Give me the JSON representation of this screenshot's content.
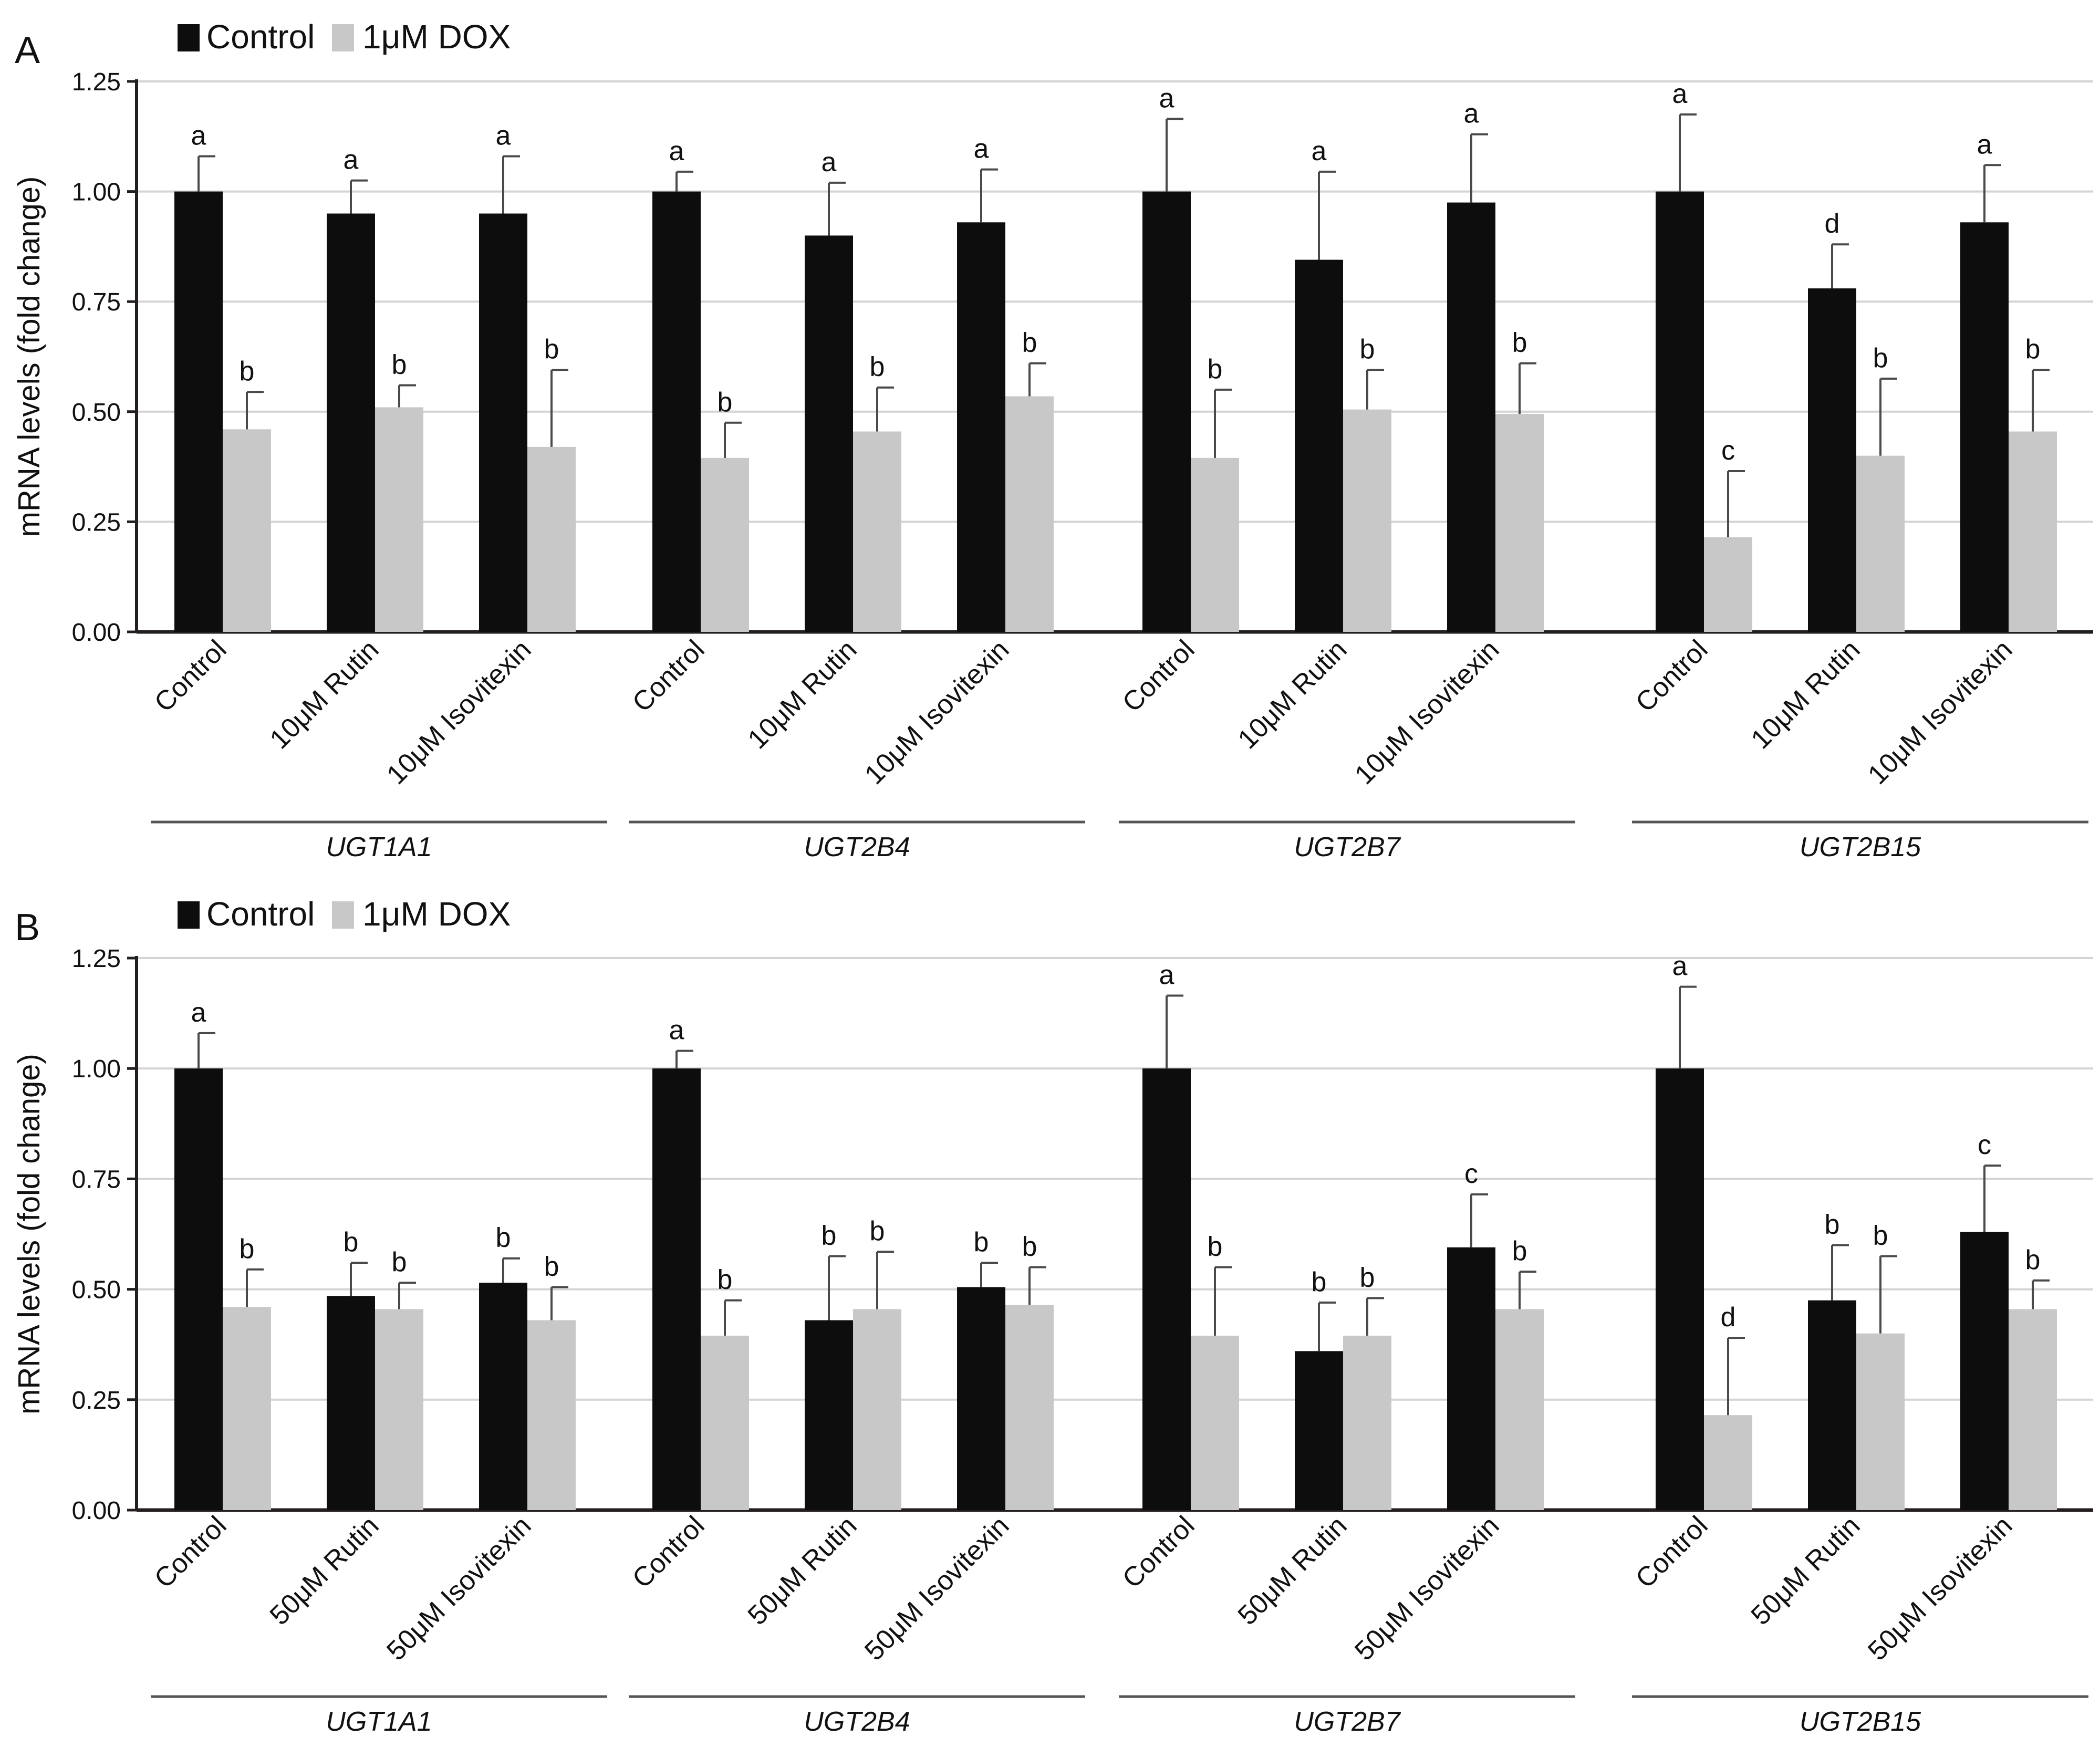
{
  "colors": {
    "control": "#0d0d0d",
    "dox": "#c8c8c8",
    "grid": "#d4d4d4",
    "axis": "#231f20",
    "error": "#4a4a4a"
  },
  "chart_data": [
    {
      "type": "bar",
      "panel": "A",
      "legend": [
        "Control",
        "1μM DOX"
      ],
      "ylabel": "mRNA levels (fold change)",
      "ylim": [
        0,
        1.25
      ],
      "yticks": [
        "0.00",
        "0.25",
        "0.50",
        "0.75",
        "1.00",
        "1.25"
      ],
      "grid": true,
      "groups": [
        {
          "gene": "UGT1A1",
          "categories": [
            "Control",
            "10μM Rutin",
            "10μM Isovitexin"
          ],
          "control": [
            1.0,
            0.95,
            0.95
          ],
          "control_err": [
            0.08,
            0.075,
            0.13
          ],
          "control_sig": [
            "a",
            "a",
            "a"
          ],
          "dox": [
            0.46,
            0.51,
            0.42
          ],
          "dox_err": [
            0.085,
            0.05,
            0.175
          ],
          "dox_sig": [
            "b",
            "b",
            "b"
          ]
        },
        {
          "gene": "UGT2B4",
          "categories": [
            "Control",
            "10μM Rutin",
            "10μM Isovitexin"
          ],
          "control": [
            1.0,
            0.9,
            0.93
          ],
          "control_err": [
            0.045,
            0.12,
            0.12
          ],
          "control_sig": [
            "a",
            "a",
            "a"
          ],
          "dox": [
            0.395,
            0.455,
            0.535
          ],
          "dox_err": [
            0.08,
            0.1,
            0.075
          ],
          "dox_sig": [
            "b",
            "b",
            "b"
          ]
        },
        {
          "gene": "UGT2B7",
          "categories": [
            "Control",
            "10μM Rutin",
            "10μM Isovitexin"
          ],
          "control": [
            1.0,
            0.845,
            0.975
          ],
          "control_err": [
            0.165,
            0.2,
            0.155
          ],
          "control_sig": [
            "a",
            "a",
            "a"
          ],
          "dox": [
            0.395,
            0.505,
            0.495
          ],
          "dox_err": [
            0.155,
            0.09,
            0.115
          ],
          "dox_sig": [
            "b",
            "b",
            "b"
          ]
        },
        {
          "gene": "UGT2B15",
          "categories": [
            "Control",
            "10μM Rutin",
            "10μM Isovitexin"
          ],
          "control": [
            1.0,
            0.78,
            0.93
          ],
          "control_err": [
            0.175,
            0.1,
            0.13
          ],
          "control_sig": [
            "a",
            "d",
            "a"
          ],
          "dox": [
            0.215,
            0.4,
            0.455
          ],
          "dox_err": [
            0.15,
            0.175,
            0.14
          ],
          "dox_sig": [
            "c",
            "b",
            "b"
          ]
        }
      ]
    },
    {
      "type": "bar",
      "panel": "B",
      "legend": [
        "Control",
        "1μM DOX"
      ],
      "ylabel": "mRNA levels (fold change)",
      "ylim": [
        0,
        1.25
      ],
      "yticks": [
        "0.00",
        "0.25",
        "0.50",
        "0.75",
        "1.00",
        "1.25"
      ],
      "grid": true,
      "groups": [
        {
          "gene": "UGT1A1",
          "categories": [
            "Control",
            "50μM Rutin",
            "50μM Isovitexin"
          ],
          "control": [
            1.0,
            0.485,
            0.515
          ],
          "control_err": [
            0.08,
            0.075,
            0.055
          ],
          "control_sig": [
            "a",
            "b",
            "b"
          ],
          "dox": [
            0.46,
            0.455,
            0.43
          ],
          "dox_err": [
            0.085,
            0.06,
            0.075
          ],
          "dox_sig": [
            "b",
            "b",
            "b"
          ]
        },
        {
          "gene": "UGT2B4",
          "categories": [
            "Control",
            "50μM Rutin",
            "50μM Isovitexin"
          ],
          "control": [
            1.0,
            0.43,
            0.505
          ],
          "control_err": [
            0.04,
            0.145,
            0.055
          ],
          "control_sig": [
            "a",
            "b",
            "b"
          ],
          "dox": [
            0.395,
            0.455,
            0.465
          ],
          "dox_err": [
            0.08,
            0.13,
            0.085
          ],
          "dox_sig": [
            "b",
            "b",
            "b"
          ]
        },
        {
          "gene": "UGT2B7",
          "categories": [
            "Control",
            "50μM Rutin",
            "50μM Isovitexin"
          ],
          "control": [
            1.0,
            0.36,
            0.595
          ],
          "control_err": [
            0.165,
            0.11,
            0.12
          ],
          "control_sig": [
            "a",
            "b",
            "c"
          ],
          "dox": [
            0.395,
            0.395,
            0.455
          ],
          "dox_err": [
            0.155,
            0.085,
            0.085
          ],
          "dox_sig": [
            "b",
            "b",
            "b"
          ]
        },
        {
          "gene": "UGT2B15",
          "categories": [
            "Control",
            "50μM Rutin",
            "50μM Isovitexin"
          ],
          "control": [
            1.0,
            0.475,
            0.63
          ],
          "control_err": [
            0.185,
            0.125,
            0.15
          ],
          "control_sig": [
            "a",
            "b",
            "c"
          ],
          "dox": [
            0.215,
            0.4,
            0.455
          ],
          "dox_err": [
            0.175,
            0.175,
            0.065
          ],
          "dox_sig": [
            "d",
            "b",
            "b"
          ]
        }
      ]
    }
  ]
}
